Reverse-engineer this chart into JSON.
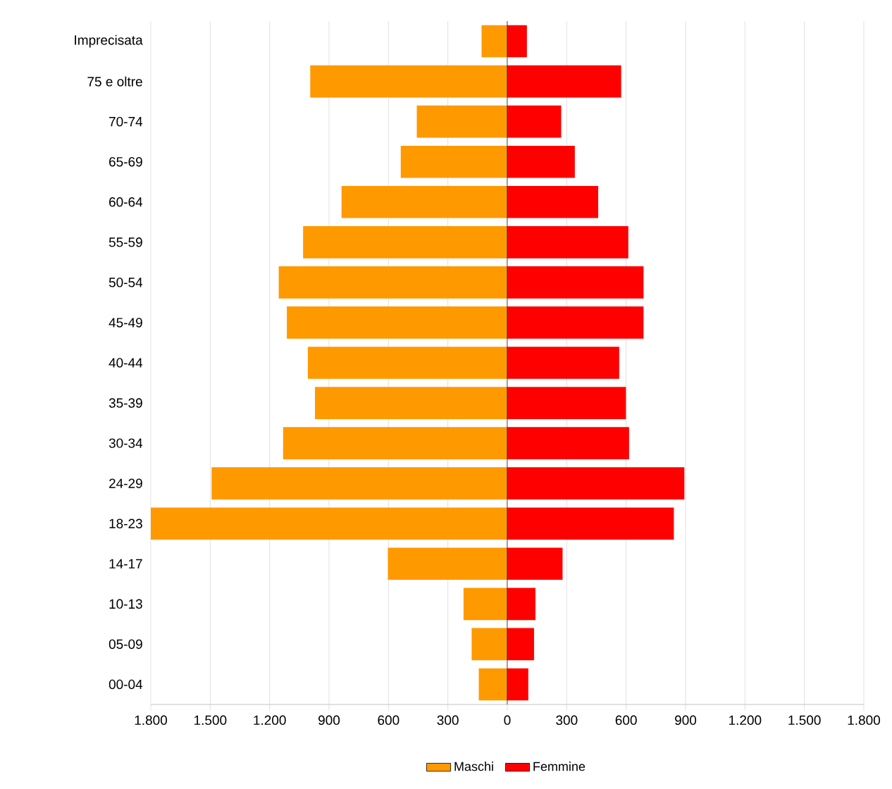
{
  "chart_data": {
    "type": "bar",
    "orientation": "horizontal",
    "categories": [
      "Imprecisata",
      "75 e oltre",
      "70-74",
      "65-69",
      "60-64",
      "55-59",
      "50-54",
      "45-49",
      "40-44",
      "35-39",
      "30-34",
      "24-29",
      "18-23",
      "14-17",
      "10-13",
      "05-09",
      "00-04"
    ],
    "series": [
      {
        "name": "Maschi",
        "color": "#ff9900",
        "values": [
          -130,
          -995,
          -457,
          -538,
          -837,
          -1031,
          -1154,
          -1113,
          -1007,
          -971,
          -1132,
          -1493,
          -1800,
          -603,
          -221,
          -180,
          -144
        ]
      },
      {
        "name": "Femmine",
        "color": "#ff0000",
        "values": [
          99,
          575,
          272,
          341,
          459,
          611,
          688,
          688,
          565,
          599,
          615,
          894,
          841,
          279,
          142,
          135,
          106
        ]
      }
    ],
    "xlim": [
      -1800,
      1800
    ],
    "xticks": [
      {
        "value": -1800,
        "label": "1.800"
      },
      {
        "value": -1500,
        "label": "1.500"
      },
      {
        "value": -1200,
        "label": "1.200"
      },
      {
        "value": -900,
        "label": "900"
      },
      {
        "value": -600,
        "label": "600"
      },
      {
        "value": -300,
        "label": "300"
      },
      0,
      300,
      600,
      900,
      {
        "value": 1200,
        "label": "1.200"
      },
      {
        "value": 1500,
        "label": "1.500"
      },
      {
        "value": 1800,
        "label": "1.800"
      }
    ],
    "grid": "x",
    "legend": "bottom",
    "stacked": true
  }
}
